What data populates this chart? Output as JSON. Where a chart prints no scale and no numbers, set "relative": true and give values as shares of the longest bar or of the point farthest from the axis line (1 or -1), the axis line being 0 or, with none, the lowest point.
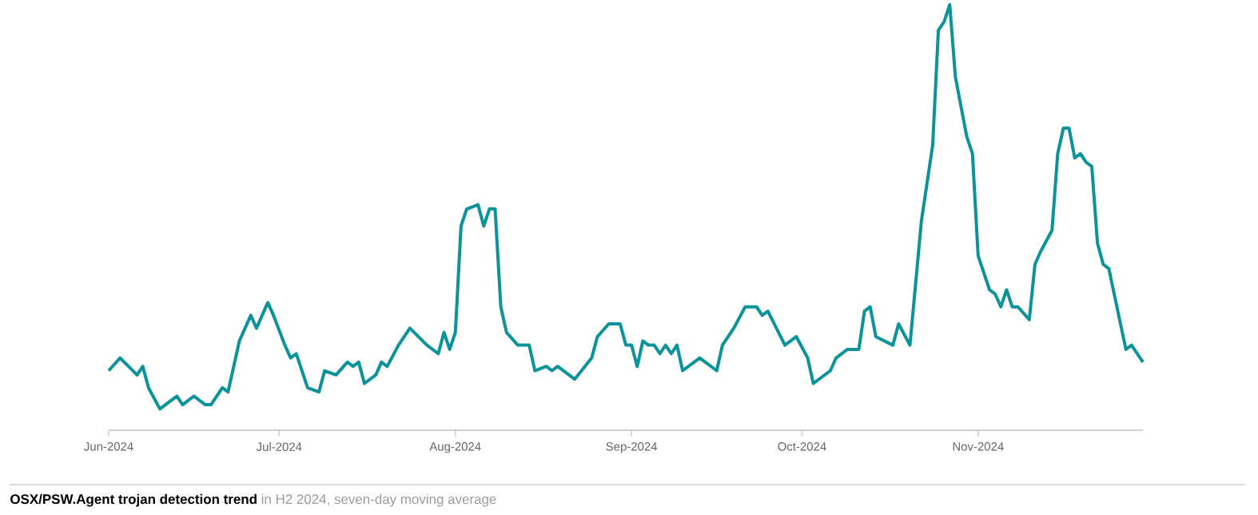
{
  "chart_data": {
    "type": "line",
    "title": "OSX/PSW.Agent trojan detection trend",
    "subtitle": "in H2 2024, seven-day moving average",
    "relative": true,
    "color": "#0a9399",
    "xlim": [
      "2024-06-01",
      "2024-11-30"
    ],
    "xticks": [
      {
        "value": "2024-06-01",
        "label": "Jun-2024"
      },
      {
        "value": "2024-07-01",
        "label": "Jul-2024"
      },
      {
        "value": "2024-08-01",
        "label": "Aug-2024"
      },
      {
        "value": "2024-09-01",
        "label": "Sep-2024"
      },
      {
        "value": "2024-10-01",
        "label": "Oct-2024"
      },
      {
        "value": "2024-11-01",
        "label": "Nov-2024"
      }
    ],
    "x": [
      "2024-06-01",
      "2024-06-03",
      "2024-06-06",
      "2024-06-07",
      "2024-06-08",
      "2024-06-10",
      "2024-06-13",
      "2024-06-14",
      "2024-06-16",
      "2024-06-18",
      "2024-06-19",
      "2024-06-21",
      "2024-06-22",
      "2024-06-24",
      "2024-06-26",
      "2024-06-27",
      "2024-06-29",
      "2024-06-30",
      "2024-07-02",
      "2024-07-03",
      "2024-07-04",
      "2024-07-06",
      "2024-07-08",
      "2024-07-09",
      "2024-07-11",
      "2024-07-13",
      "2024-07-14",
      "2024-07-15",
      "2024-07-16",
      "2024-07-18",
      "2024-07-19",
      "2024-07-20",
      "2024-07-22",
      "2024-07-24",
      "2024-07-27",
      "2024-07-29",
      "2024-07-30",
      "2024-07-31",
      "2024-08-01",
      "2024-08-02",
      "2024-08-03",
      "2024-08-05",
      "2024-08-06",
      "2024-08-07",
      "2024-08-08",
      "2024-08-09",
      "2024-08-10",
      "2024-08-12",
      "2024-08-14",
      "2024-08-15",
      "2024-08-17",
      "2024-08-18",
      "2024-08-19",
      "2024-08-22",
      "2024-08-25",
      "2024-08-26",
      "2024-08-28",
      "2024-08-30",
      "2024-08-31",
      "2024-09-01",
      "2024-09-02",
      "2024-09-03",
      "2024-09-04",
      "2024-09-05",
      "2024-09-06",
      "2024-09-07",
      "2024-09-08",
      "2024-09-09",
      "2024-09-10",
      "2024-09-13",
      "2024-09-16",
      "2024-09-17",
      "2024-09-19",
      "2024-09-21",
      "2024-09-23",
      "2024-09-24",
      "2024-09-25",
      "2024-09-28",
      "2024-09-30",
      "2024-10-02",
      "2024-10-03",
      "2024-10-06",
      "2024-10-07",
      "2024-10-08",
      "2024-10-09",
      "2024-10-11",
      "2024-10-12",
      "2024-10-13",
      "2024-10-14",
      "2024-10-17",
      "2024-10-18",
      "2024-10-20",
      "2024-10-22",
      "2024-10-24",
      "2024-10-25",
      "2024-10-26",
      "2024-10-27",
      "2024-10-28",
      "2024-10-30",
      "2024-10-31",
      "2024-11-01",
      "2024-11-03",
      "2024-11-04",
      "2024-11-05",
      "2024-11-06",
      "2024-11-07",
      "2024-11-08",
      "2024-11-10",
      "2024-11-11",
      "2024-11-12",
      "2024-11-14",
      "2024-11-15",
      "2024-11-16",
      "2024-11-17",
      "2024-11-18",
      "2024-11-19",
      "2024-11-20",
      "2024-11-21",
      "2024-11-22",
      "2024-11-23",
      "2024-11-24",
      "2024-11-27",
      "2024-11-28",
      "2024-11-30"
    ],
    "values": [
      0.14,
      0.17,
      0.13,
      0.15,
      0.1,
      0.05,
      0.08,
      0.06,
      0.08,
      0.06,
      0.06,
      0.1,
      0.09,
      0.21,
      0.27,
      0.24,
      0.3,
      0.27,
      0.2,
      0.17,
      0.18,
      0.1,
      0.09,
      0.14,
      0.13,
      0.16,
      0.15,
      0.16,
      0.11,
      0.13,
      0.16,
      0.15,
      0.2,
      0.24,
      0.2,
      0.18,
      0.23,
      0.19,
      0.23,
      0.48,
      0.52,
      0.53,
      0.48,
      0.52,
      0.52,
      0.29,
      0.23,
      0.2,
      0.2,
      0.14,
      0.15,
      0.14,
      0.15,
      0.12,
      0.17,
      0.22,
      0.25,
      0.25,
      0.2,
      0.2,
      0.15,
      0.21,
      0.2,
      0.2,
      0.18,
      0.2,
      0.18,
      0.2,
      0.14,
      0.17,
      0.14,
      0.2,
      0.24,
      0.29,
      0.29,
      0.27,
      0.28,
      0.2,
      0.22,
      0.17,
      0.11,
      0.14,
      0.17,
      0.18,
      0.19,
      0.19,
      0.28,
      0.29,
      0.22,
      0.2,
      0.25,
      0.2,
      0.49,
      0.67,
      0.94,
      0.96,
      1.0,
      0.83,
      0.69,
      0.65,
      0.41,
      0.33,
      0.32,
      0.29,
      0.33,
      0.29,
      0.29,
      0.26,
      0.39,
      0.42,
      0.47,
      0.65,
      0.71,
      0.71,
      0.64,
      0.65,
      0.63,
      0.62,
      0.44,
      0.39,
      0.38,
      0.19,
      0.2,
      0.16
    ],
    "grid": false,
    "marker": "none",
    "line_style": "solid"
  }
}
